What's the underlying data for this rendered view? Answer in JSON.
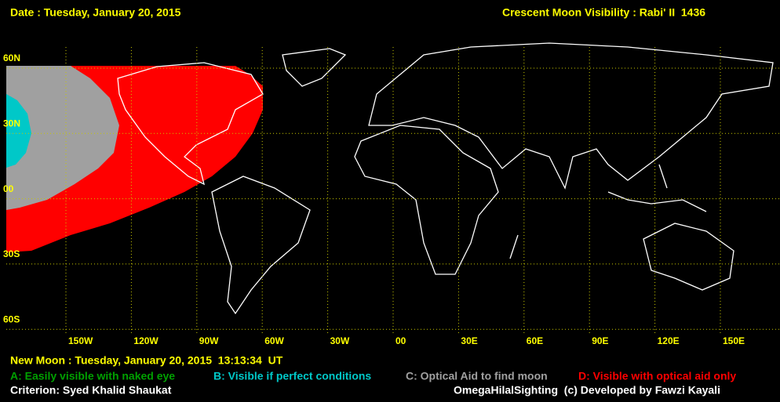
{
  "header": {
    "date": "Date : Tuesday, January 20, 2015",
    "title": "Crescent Moon Visibility : Rabi' II  1436"
  },
  "latitude_labels": [
    "60N",
    "30N",
    "00",
    "30S",
    "60S"
  ],
  "longitude_labels": [
    "150W",
    "120W",
    "90W",
    "60W",
    "30W",
    "00",
    "30E",
    "60E",
    "90E",
    "120E",
    "150E"
  ],
  "new_moon": "New Moon : Tuesday, January 20, 2015  13:13:34  UT",
  "legend": [
    {
      "label": "A: Easily visible with naked eye",
      "color": "#00a000"
    },
    {
      "label": "B: Visible if perfect conditions",
      "color": "#00c8c8"
    },
    {
      "label": "C: Optical Aid to find moon",
      "color": "#a0a0a0"
    },
    {
      "label": "D: Visible with optical aid only",
      "color": "#ff0000"
    }
  ],
  "criterion": "Criterion: Syed Khalid Shaukat",
  "credit": "OmegaHilalSighting  (c) Developed by Fawzi Kayali"
}
